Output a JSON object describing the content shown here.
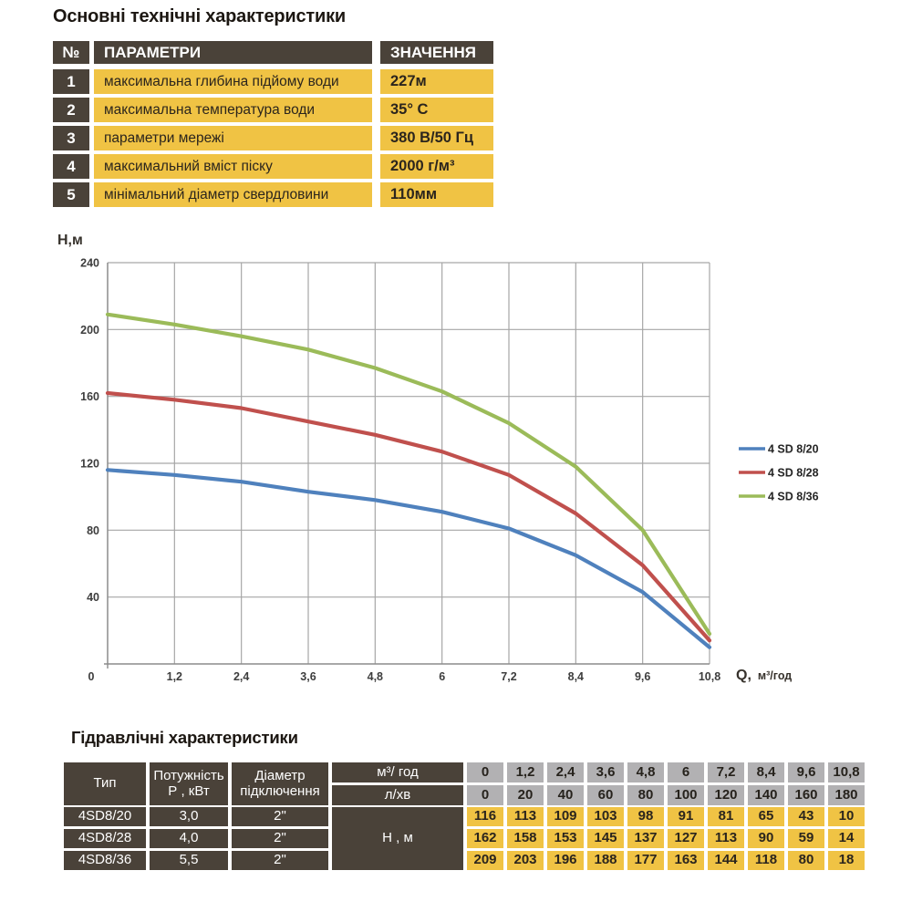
{
  "colors": {
    "dark_cell": "#4a4239",
    "yellow_cell": "#f0c344",
    "gray_cell": "#b2b1b3",
    "grid": "#a6a6a6",
    "axis": "#8c8c8c",
    "tick_text": "#3d3d3d",
    "series_blue": "#4F81BD",
    "series_red": "#C0504D",
    "series_green": "#9BBB59"
  },
  "main_specs": {
    "title": "Основні технічні характеристики",
    "header": {
      "num": "№",
      "param": "ПАРАМЕТРИ",
      "value": "ЗНАЧЕННЯ"
    },
    "rows": [
      {
        "num": "1",
        "param": "максимальна глибина підйому води",
        "value": "227м"
      },
      {
        "num": "2",
        "param": "максимальна температура води",
        "value": "35° С"
      },
      {
        "num": "3",
        "param": "параметри мережі",
        "value": "380 В/50 Гц"
      },
      {
        "num": "4",
        "param": "максимальний вміст піску",
        "value": "2000 г/м³"
      },
      {
        "num": "5",
        "param": "мінімальний діаметр свердловини",
        "value": "110мм"
      }
    ]
  },
  "chart_data": {
    "type": "line",
    "title": "",
    "ylabel": "H,м",
    "xlabel": "Q,  м³/год",
    "xlabel_main": "Q,",
    "xlabel_unit": "м³/год",
    "xlim": [
      0,
      10.8
    ],
    "ylim": [
      0,
      240
    ],
    "grid": true,
    "legend_position": "right",
    "x": [
      0,
      1.2,
      2.4,
      3.6,
      4.8,
      6,
      7.2,
      8.4,
      9.6,
      10.8
    ],
    "x_tick_labels": [
      "0",
      "1,2",
      "2,4",
      "3,6",
      "4,8",
      "6",
      "7,2",
      "8,4",
      "9,6",
      "10,8"
    ],
    "y_ticks": [
      240,
      200,
      160,
      120,
      80,
      40
    ],
    "series": [
      {
        "name": "4 SD 8/20",
        "color": "#4F81BD",
        "values": [
          116,
          113,
          109,
          103,
          98,
          91,
          81,
          65,
          43,
          10
        ]
      },
      {
        "name": "4 SD 8/28",
        "color": "#C0504D",
        "values": [
          162,
          158,
          153,
          145,
          137,
          127,
          113,
          90,
          59,
          14
        ]
      },
      {
        "name": "4 SD 8/36",
        "color": "#9BBB59",
        "values": [
          209,
          203,
          196,
          188,
          177,
          163,
          144,
          118,
          80,
          18
        ]
      }
    ]
  },
  "hydraulic": {
    "title": "Гідравлічні характеристики",
    "header": {
      "type": "Тип",
      "power_l1": "Потужність",
      "power_l2": "Р , кВт",
      "diameter_l1": "Діаметр",
      "diameter_l2": "підключення",
      "flow_unit1": "м³/ год",
      "flow_unit2": "л/хв",
      "head_label": "Н , м"
    },
    "flow_m3": [
      "0",
      "1,2",
      "2,4",
      "3,6",
      "4,8",
      "6",
      "7,2",
      "8,4",
      "9,6",
      "10,8"
    ],
    "flow_lmin": [
      "0",
      "20",
      "40",
      "60",
      "80",
      "100",
      "120",
      "140",
      "160",
      "180"
    ],
    "rows": [
      {
        "type": "4SD8/20",
        "power": "3,0",
        "diameter": "2\"",
        "heads": [
          "116",
          "113",
          "109",
          "103",
          "98",
          "91",
          "81",
          "65",
          "43",
          "10"
        ]
      },
      {
        "type": "4SD8/28",
        "power": "4,0",
        "diameter": "2\"",
        "heads": [
          "162",
          "158",
          "153",
          "145",
          "137",
          "127",
          "113",
          "90",
          "59",
          "14"
        ]
      },
      {
        "type": "4SD8/36",
        "power": "5,5",
        "diameter": "2\"",
        "heads": [
          "209",
          "203",
          "196",
          "188",
          "177",
          "163",
          "144",
          "118",
          "80",
          "18"
        ]
      }
    ]
  }
}
